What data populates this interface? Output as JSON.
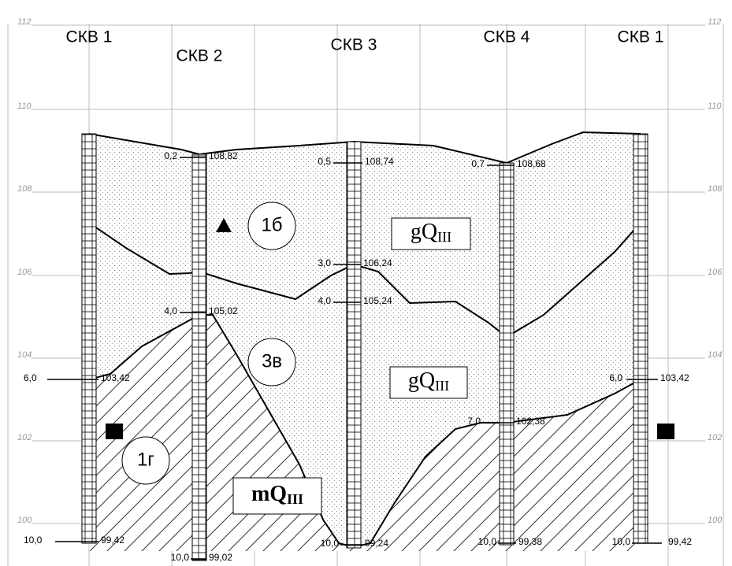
{
  "elevation_labels": [
    "112",
    "110",
    "108",
    "106",
    "104",
    "102",
    "100"
  ],
  "boreholes": [
    "СКВ 1",
    "СКВ 2",
    "СКВ 3",
    "СКВ 4",
    "СКВ 1"
  ],
  "depth_marks": [
    {
      "depth": "0,2",
      "elevation": "108,82"
    },
    {
      "depth": "0,5",
      "elevation": "108,74"
    },
    {
      "depth": "0,7",
      "elevation": "108,68"
    },
    {
      "depth": "3,0",
      "elevation": "106,24"
    },
    {
      "depth": "4,0",
      "elevation": "105,24"
    },
    {
      "depth": "4,0",
      "elevation": "105,02"
    },
    {
      "depth": "6,0",
      "elevation": "103,42"
    },
    {
      "depth": "6,0",
      "elevation": "103,42"
    },
    {
      "depth": "7,0",
      "elevation": "102,38"
    },
    {
      "depth": "10,0",
      "elevation": "99,42"
    },
    {
      "depth": "10,0",
      "elevation": "99,02"
    },
    {
      "depth": "10,0",
      "elevation": "99,24"
    },
    {
      "depth": "10,0",
      "elevation": "99,38"
    },
    {
      "depth": "10,0",
      "elevation": "99,42"
    }
  ],
  "layers": [
    "1б",
    "3в",
    "1г"
  ],
  "ages": [
    {
      "main": "gQ",
      "sub": "III"
    },
    {
      "main": "gQ",
      "sub": "III"
    },
    {
      "main": "mQ",
      "sub": "III"
    }
  ]
}
